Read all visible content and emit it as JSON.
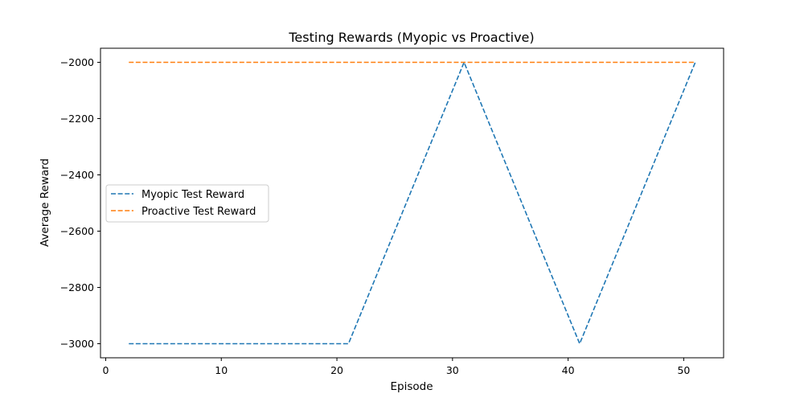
{
  "chart_data": {
    "type": "line",
    "title": "Testing Rewards (Myopic vs Proactive)",
    "xlabel": "Episode",
    "ylabel": "Average Reward",
    "xlim": [
      -0.45,
      53.45
    ],
    "ylim": [
      -3050,
      -1950
    ],
    "xticks": [
      0,
      10,
      20,
      30,
      40,
      50
    ],
    "xtick_labels": [
      "0",
      "10",
      "20",
      "30",
      "40",
      "50"
    ],
    "yticks": [
      -3000,
      -2800,
      -2600,
      -2400,
      -2200,
      -2000
    ],
    "ytick_labels": [
      "−3000",
      "−2800",
      "−2600",
      "−2400",
      "−2200",
      "−2000"
    ],
    "grid": false,
    "legend_position": "center-left",
    "series": [
      {
        "name": "Myopic Test Reward",
        "color": "#1f77b4",
        "style": "dashed",
        "x": [
          2,
          21,
          31,
          41,
          51
        ],
        "y": [
          -3000,
          -3000,
          -2000,
          -3000,
          -2000
        ]
      },
      {
        "name": "Proactive Test Reward",
        "color": "#ff7f0e",
        "style": "dashed",
        "x": [
          2,
          51
        ],
        "y": [
          -2000,
          -2000
        ]
      }
    ]
  }
}
